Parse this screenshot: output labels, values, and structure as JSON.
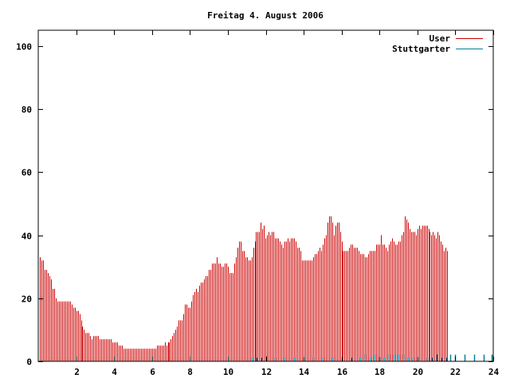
{
  "chart_data": {
    "type": "bar",
    "title": "Freitag 4. August 2006",
    "xlabel": "",
    "ylabel": "",
    "xlim": [
      0,
      24
    ],
    "ylim": [
      0,
      105
    ],
    "x_ticks": [
      2,
      4,
      6,
      8,
      10,
      12,
      14,
      16,
      18,
      20,
      22,
      24
    ],
    "y_ticks": [
      0,
      20,
      40,
      60,
      80,
      100
    ],
    "legend_position": "top-right",
    "grid": false,
    "series": [
      {
        "name": "User",
        "color": "#cc0000",
        "style": "impulses",
        "x_start": 0.0833,
        "x_step": 0.0833,
        "values": [
          33,
          32,
          32,
          29,
          29,
          28,
          27,
          26,
          23,
          23,
          20,
          19,
          19,
          19,
          19,
          19,
          19,
          19,
          19,
          19,
          18,
          17,
          17,
          16,
          16,
          15,
          13,
          11,
          10,
          9,
          9,
          9,
          8,
          7,
          8,
          8,
          8,
          8,
          7,
          7,
          7,
          7,
          7,
          7,
          7,
          7,
          6,
          6,
          6,
          6,
          5,
          5,
          5,
          4,
          4,
          4,
          4,
          4,
          4,
          4,
          4,
          4,
          4,
          4,
          4,
          4,
          4,
          4,
          4,
          4,
          4,
          4,
          4,
          4,
          5,
          5,
          5,
          5,
          5,
          6,
          5,
          6,
          6,
          7,
          8,
          9,
          10,
          11,
          13,
          13,
          13,
          15,
          18,
          18,
          17,
          17,
          19,
          21,
          22,
          23,
          22,
          24,
          25,
          25,
          26,
          27,
          27,
          29,
          29,
          31,
          31,
          31,
          33,
          31,
          31,
          30,
          30,
          31,
          31,
          30,
          28,
          28,
          28,
          31,
          33,
          36,
          38,
          38,
          35,
          35,
          33,
          33,
          32,
          32,
          33,
          36,
          38,
          41,
          41,
          41,
          44,
          42,
          43,
          39,
          40,
          41,
          40,
          41,
          41,
          39,
          39,
          39,
          38,
          37,
          36,
          38,
          38,
          39,
          38,
          39,
          39,
          39,
          38,
          36,
          36,
          35,
          32,
          32,
          32,
          32,
          32,
          32,
          32,
          33,
          34,
          34,
          35,
          36,
          35,
          37,
          39,
          40,
          44,
          46,
          46,
          44,
          40,
          43,
          44,
          44,
          41,
          38,
          35,
          35,
          35,
          35,
          36,
          37,
          37,
          36,
          36,
          36,
          35,
          34,
          34,
          34,
          33,
          33,
          34,
          35,
          35,
          35,
          35,
          37,
          37,
          37,
          40,
          37,
          37,
          36,
          35,
          37,
          38,
          39,
          38,
          37,
          37,
          38,
          38,
          40,
          41,
          46,
          45,
          44,
          42,
          41,
          41,
          41,
          40,
          42,
          43,
          42,
          43,
          43,
          43,
          43,
          42,
          41,
          40,
          41,
          40,
          39,
          41,
          40,
          38,
          37,
          35,
          36,
          35
        ]
      },
      {
        "name": "Stuttgarter",
        "color": "#0080a0",
        "style": "impulses",
        "points": [
          [
            11.25,
            1
          ],
          [
            11.5,
            1
          ],
          [
            11.75,
            1
          ],
          [
            12.0,
            1
          ],
          [
            12.5,
            1
          ],
          [
            13.0,
            1
          ],
          [
            13.5,
            1
          ],
          [
            14.0,
            1
          ],
          [
            14.5,
            1
          ],
          [
            15.0,
            1
          ],
          [
            15.5,
            1
          ],
          [
            16.0,
            1
          ],
          [
            16.5,
            1
          ],
          [
            17.0,
            1
          ],
          [
            17.25,
            2
          ],
          [
            17.5,
            1
          ],
          [
            17.75,
            2
          ],
          [
            18.0,
            1
          ],
          [
            18.25,
            1
          ],
          [
            18.5,
            2
          ],
          [
            18.75,
            2
          ],
          [
            19.0,
            2
          ],
          [
            19.25,
            2
          ],
          [
            19.5,
            1
          ],
          [
            19.75,
            1
          ],
          [
            20.0,
            1
          ],
          [
            20.5,
            1
          ],
          [
            20.75,
            1
          ],
          [
            21.0,
            2
          ],
          [
            21.25,
            1
          ],
          [
            21.5,
            1
          ],
          [
            21.75,
            2
          ],
          [
            22.0,
            2
          ],
          [
            22.5,
            2
          ],
          [
            23.0,
            2
          ],
          [
            23.5,
            2
          ],
          [
            23.9,
            2
          ]
        ]
      }
    ]
  }
}
